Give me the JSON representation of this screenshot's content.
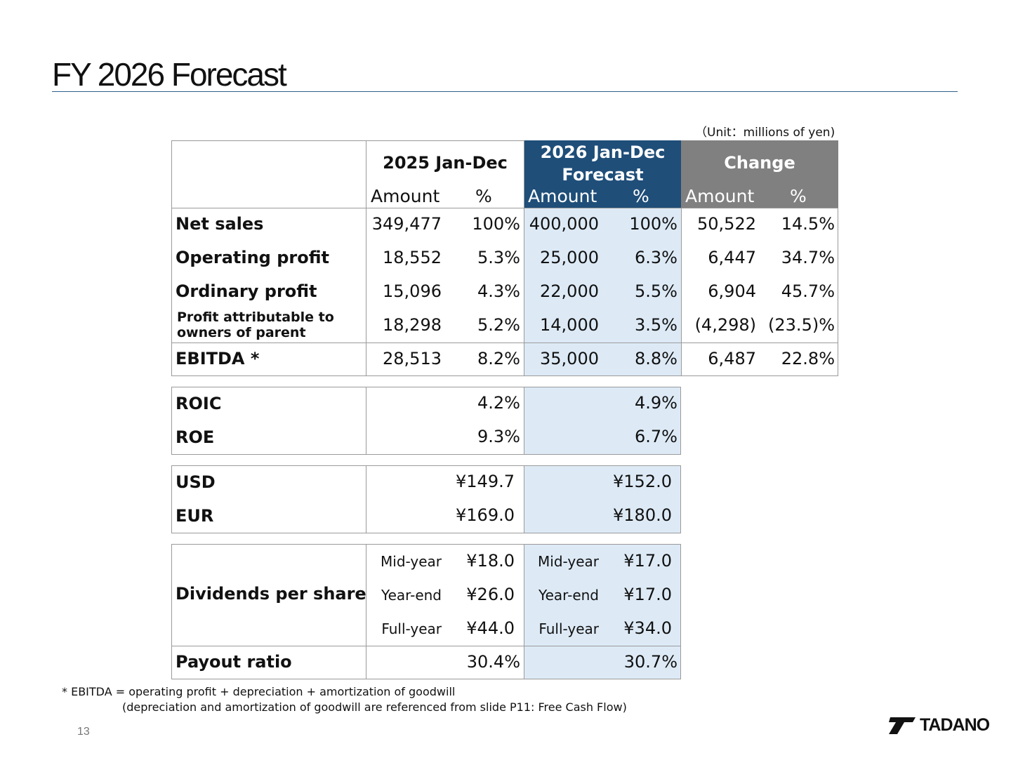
{
  "title": "FY 2026 Forecast",
  "unit_note": "（Unit：millions of yen)",
  "header": {
    "col_2025": "2025 Jan-Dec",
    "col_2026_line1": "2026 Jan-Dec",
    "col_2026_line2": "Forecast",
    "col_change": "Change",
    "amount": "Amount",
    "pct": "%"
  },
  "rows": [
    {
      "label": "Net sales",
      "a25": "349,477",
      "p25": "100%",
      "a26": "400,000",
      "p26": "100%",
      "ac": "50,522",
      "pc": "14.5%"
    },
    {
      "label": "Operating profit",
      "a25": "18,552",
      "p25": "5.3%",
      "a26": "25,000",
      "p26": "6.3%",
      "ac": "6,447",
      "pc": "34.7%"
    },
    {
      "label": "Ordinary profit",
      "a25": "15,096",
      "p25": "4.3%",
      "a26": "22,000",
      "p26": "5.5%",
      "ac": "6,904",
      "pc": "45.7%"
    },
    {
      "label_line1": "Profit attributable to",
      "label_line2": "owners of parent",
      "a25": "18,298",
      "p25": "5.2%",
      "a26": "14,000",
      "p26": "3.5%",
      "ac": "(4,298)",
      "pc": "(23.5)%"
    }
  ],
  "ebitda": {
    "label": "EBITDA *",
    "a25": "28,513",
    "p25": "8.2%",
    "a26": "35,000",
    "p26": "8.8%",
    "ac": "6,487",
    "pc": "22.8%"
  },
  "ratios": [
    {
      "label": "ROIC",
      "v25": "4.2%",
      "v26": "4.9%"
    },
    {
      "label": "ROE",
      "v25": "9.3%",
      "v26": "6.7%"
    }
  ],
  "fx": [
    {
      "label": "USD",
      "v25": "¥149.7",
      "v26": "¥152.0"
    },
    {
      "label": "EUR",
      "v25": "¥169.0",
      "v26": "¥180.0"
    }
  ],
  "dividends": {
    "label": "Dividends per share",
    "items": [
      {
        "name25": "Mid-year",
        "v25": "¥18.0",
        "name26": "Mid-year",
        "v26": "¥17.0"
      },
      {
        "name25": "Year-end",
        "v25": "¥26.0",
        "name26": "Year-end",
        "v26": "¥17.0"
      },
      {
        "name25": "Full-year",
        "v25": "¥44.0",
        "name26": "Full-year",
        "v26": "¥34.0"
      }
    ]
  },
  "payout": {
    "label": "Payout ratio",
    "v25": "30.4%",
    "v26": "30.7%"
  },
  "footnote_1": "* EBITDA = operating profit + depreciation + amortization of goodwill",
  "footnote_2": "(depreciation and amortization of goodwill are referenced from slide P11: Free Cash Flow)",
  "page_number": "13",
  "logo": {
    "text": "TADANO",
    "icon": "tadano-logo-icon"
  }
}
